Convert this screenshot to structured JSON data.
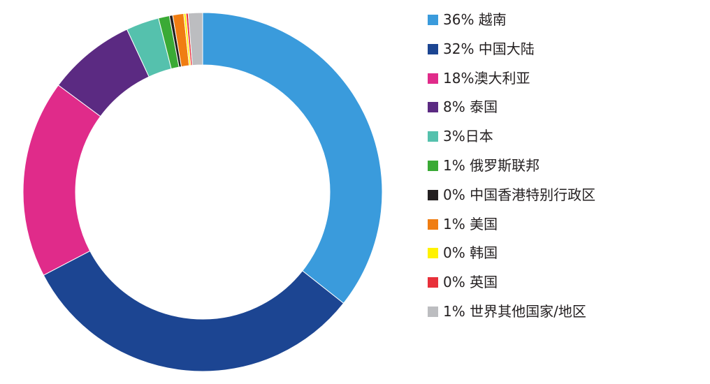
{
  "chart_data": {
    "type": "pie",
    "variant": "donut",
    "title": "",
    "legend_position": "right",
    "slices": [
      {
        "label": "36% 越南",
        "value": 36,
        "color": "#3a9bdc"
      },
      {
        "label": "32% 中国大陆",
        "value": 32,
        "color": "#1c4592"
      },
      {
        "label": "18%澳大利亚",
        "value": 18,
        "color": "#e02b8a"
      },
      {
        "label": "8% 泰国",
        "value": 8,
        "color": "#5b2a82"
      },
      {
        "label": "3%日本",
        "value": 3,
        "color": "#55c1ad"
      },
      {
        "label": "1% 俄罗斯联邦",
        "value": 1,
        "color": "#3aaa35"
      },
      {
        "label": "0% 中国香港特别行政区",
        "value": 0.3,
        "color": "#231f20"
      },
      {
        "label": "1% 美国",
        "value": 1,
        "color": "#f07d12"
      },
      {
        "label": "0% 韩国",
        "value": 0.2,
        "color": "#fff200"
      },
      {
        "label": "0% 英国",
        "value": 0.2,
        "color": "#e8303a"
      },
      {
        "label": "1% 世界其他国家/地区",
        "value": 1.3,
        "color": "#bcbdc0"
      }
    ]
  }
}
